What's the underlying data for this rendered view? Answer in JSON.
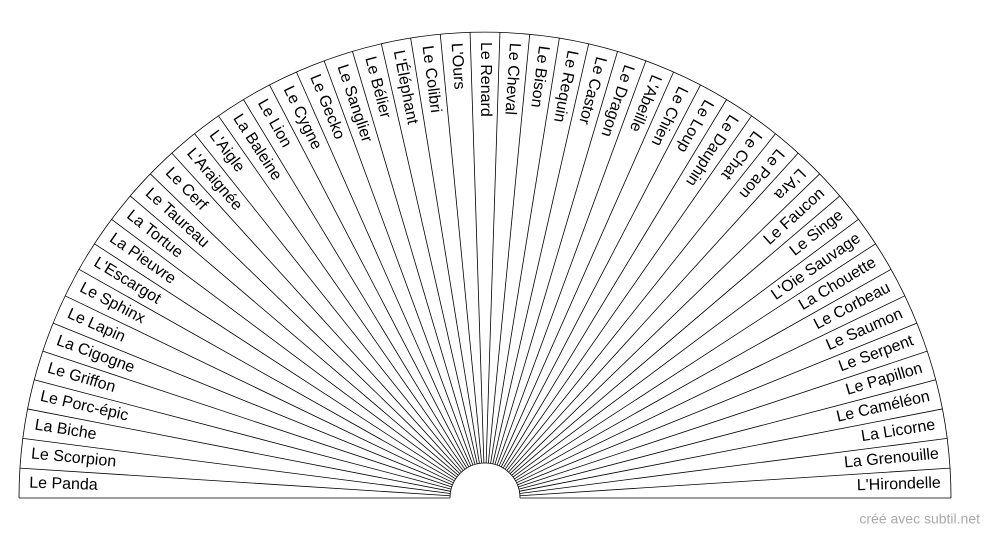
{
  "labels": [
    "Le Panda",
    "Le Scorpion",
    "La Biche",
    "Le Porc-épic",
    "Le Griffon",
    "La Cigogne",
    "Le Lapin",
    "Le Sphinx",
    "L'Escargot",
    "La Pieuvre",
    "La Tortue",
    "Le Taureau",
    "Le Cerf",
    "L'Araignée",
    "L'Aigle",
    "La Baleine",
    "Le Lion",
    "Le Cygne",
    "Le Gecko",
    "Le Sanglier",
    "Le Bélier",
    "L'Éléphant",
    "Le Colibri",
    "L'Ours",
    "Le Renard",
    "Le Cheval",
    "Le Bison",
    "Le Requin",
    "Le Castor",
    "Le Dragon",
    "L'Abeille",
    "Le Chien",
    "Le Loup",
    "Le Dauphin",
    "Le Chat",
    "Le Paon",
    "L'Ara",
    "Le Faucon",
    "Le Singe",
    "L'Oie Sauvage",
    "La Chouette",
    "Le Corbeau",
    "Le Saumon",
    "Le Serpent",
    "Le Papillon",
    "Le Caméléon",
    "La Licorne",
    "La Grenouille",
    "L'Hirondelle"
  ],
  "footer": "créé avec subtil.net"
}
